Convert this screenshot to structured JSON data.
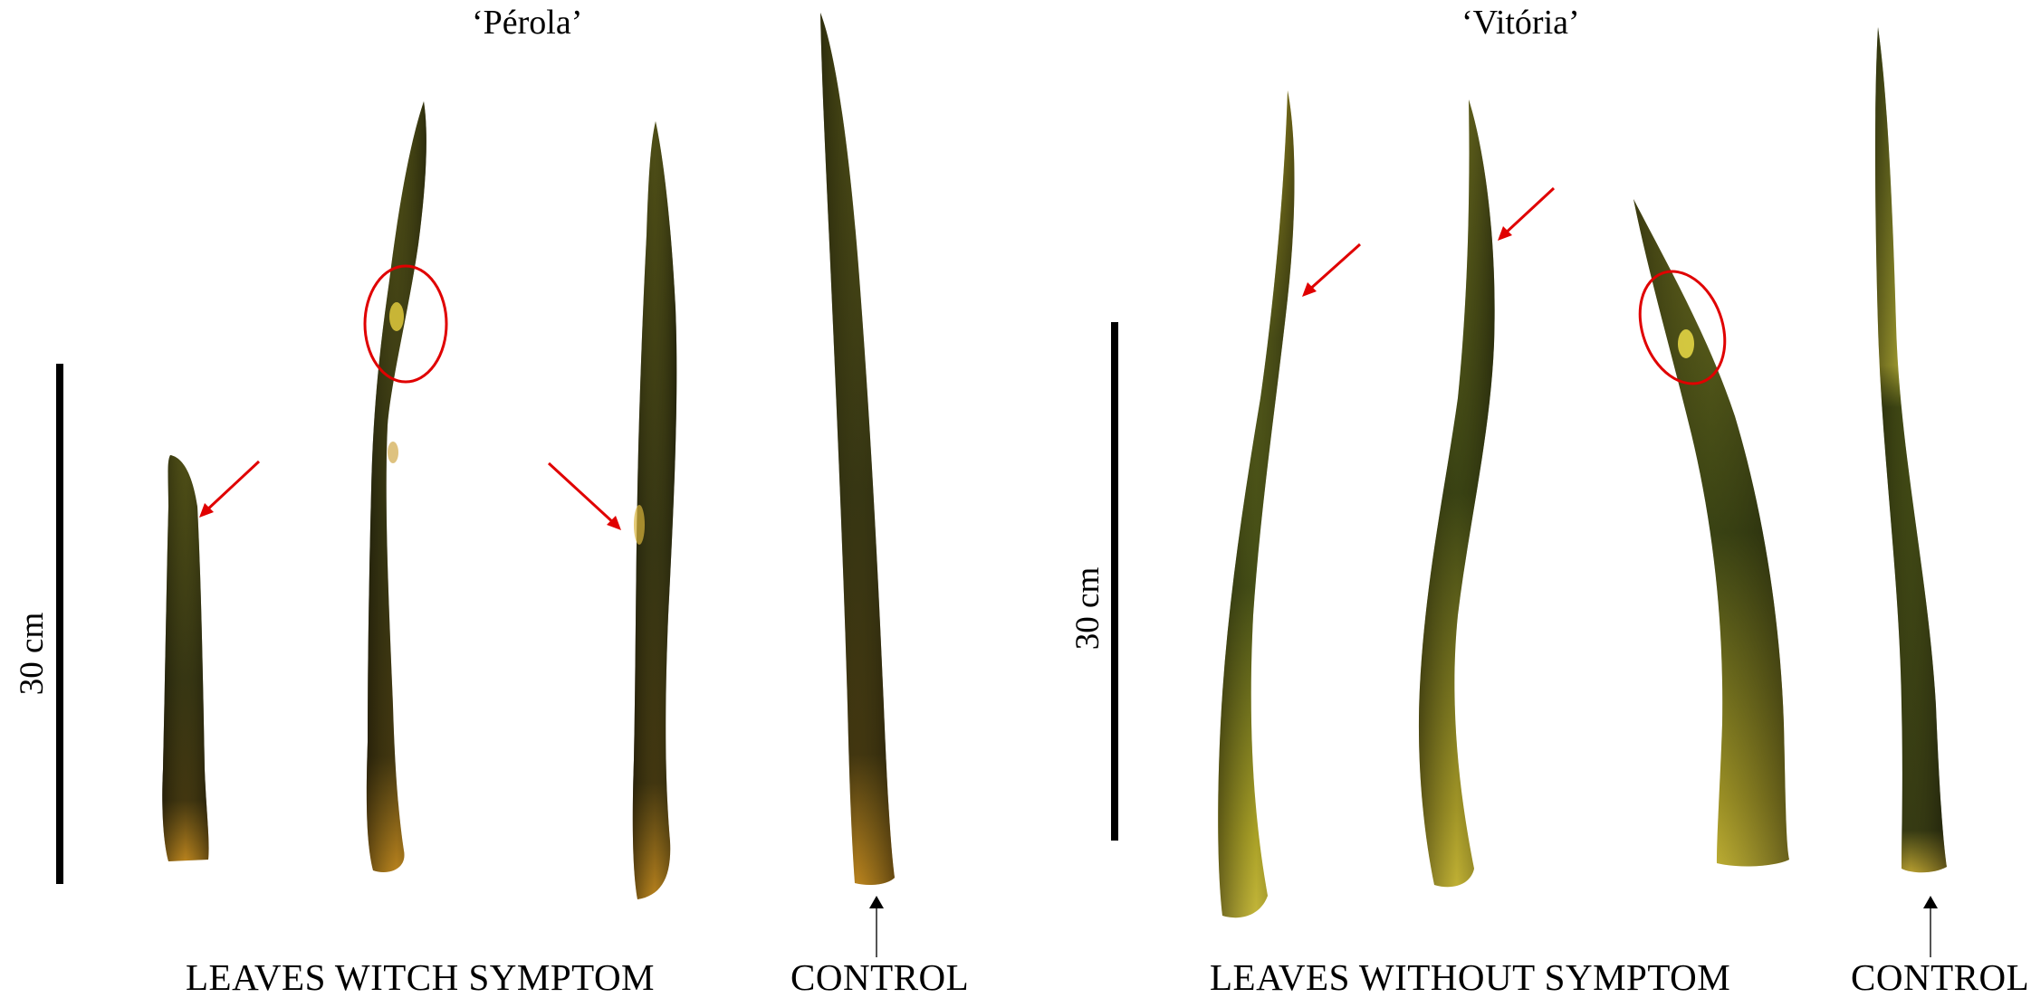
{
  "panels": [
    {
      "title": "‘Pérola’",
      "scale_label": "30 cm",
      "group_caption": "LEAVES WITCH SYMPTOM",
      "control_caption": "CONTROL"
    },
    {
      "title": "‘Vitória’",
      "scale_label": "30 cm",
      "group_caption": "LEAVES WITHOUT  SYMPTOM",
      "control_caption": "CONTROL"
    }
  ],
  "colors": {
    "leaf_dark": "#2b2a10",
    "leaf_mid": "#4a4a16",
    "leaf_yellow": "#c9b52a",
    "leaf_base": "#c8781a",
    "annotation_red": "#e00000",
    "scale_bar": "#000000"
  }
}
